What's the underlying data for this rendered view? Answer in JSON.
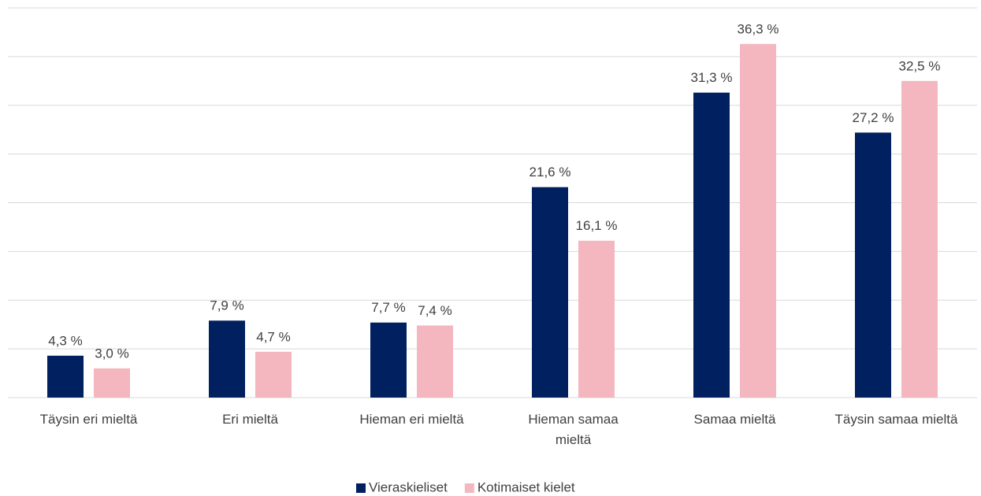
{
  "chart_data": {
    "type": "bar",
    "categories": [
      "Täysin eri mieltä",
      "Eri mieltä",
      "Hieman eri mieltä",
      "Hieman samaa mieltä",
      "Samaa mieltä",
      "Täysin samaa mieltä"
    ],
    "series": [
      {
        "name": "Vieraskieliset",
        "color": "#002060",
        "values": [
          4.3,
          7.9,
          7.7,
          21.6,
          31.3,
          27.2
        ],
        "value_labels": [
          "4,3 %",
          "7,9 %",
          "7,7 %",
          "21,6 %",
          "31,3 %",
          "27,2 %"
        ]
      },
      {
        "name": "Kotimaiset kielet",
        "color": "#f4b6bf",
        "values": [
          3.0,
          4.7,
          7.4,
          16.1,
          36.3,
          32.5
        ],
        "value_labels": [
          "3,0 %",
          "4,7 %",
          "7,4 %",
          "16,1 %",
          "36,3 %",
          "32,5 %"
        ]
      }
    ],
    "ylim": [
      0,
      40
    ],
    "yticks": [
      0,
      5,
      10,
      15,
      20,
      25,
      30,
      35,
      40
    ],
    "grid": true,
    "legend": "bottom"
  }
}
